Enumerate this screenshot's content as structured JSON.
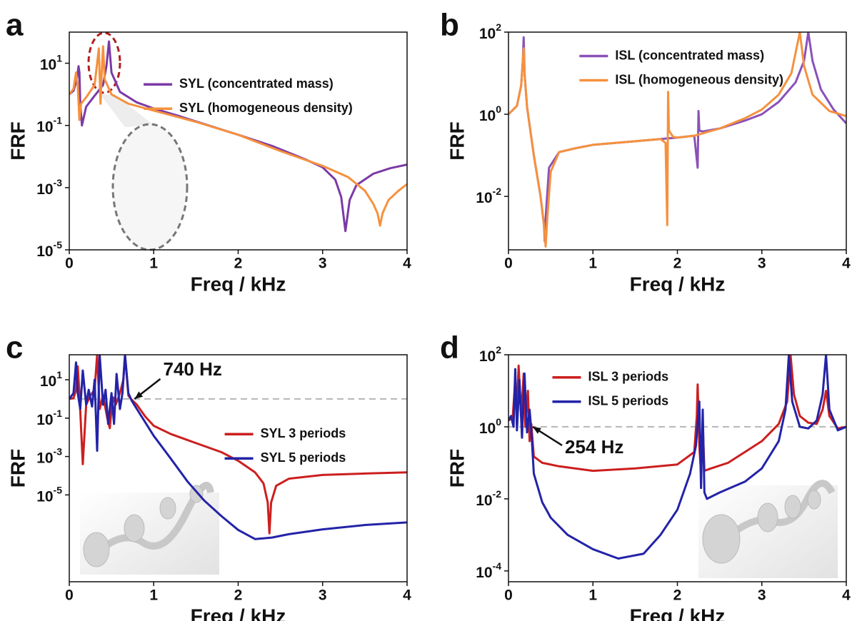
{
  "chart_data": [
    {
      "type": "line",
      "panel_label": "a",
      "xlabel": "Freq / kHz",
      "ylabel": "FRF",
      "yscale": "log",
      "legend": "upper right",
      "xlim": [
        0,
        4
      ],
      "xticks": [
        0,
        1,
        2,
        3,
        4
      ],
      "ylim": [
        1e-05,
        100
      ],
      "yticks": [
        {
          "value": 1e-05,
          "label": "10^-5"
        },
        {
          "value": 0.001,
          "label": "10^-3"
        },
        {
          "value": 0.1,
          "label": "10^-1"
        },
        {
          "value": 10,
          "label": "10^1"
        }
      ],
      "series": [
        {
          "name": "SYL (concentrated mass)",
          "color": "#7b3aa6",
          "x": [
            0,
            0.05,
            0.09,
            0.11,
            0.12,
            0.13,
            0.15,
            0.2,
            0.3,
            0.4,
            0.44,
            0.47,
            0.5,
            0.6,
            0.8,
            1.0,
            1.3,
            1.6,
            2.0,
            2.4,
            2.8,
            3.0,
            3.15,
            3.22,
            3.27,
            3.32,
            3.4,
            3.6,
            3.8,
            4.0
          ],
          "values": [
            1,
            1.3,
            3,
            8,
            5,
            0.5,
            0.1,
            0.4,
            0.9,
            2,
            8,
            50,
            5,
            1.2,
            0.55,
            0.35,
            0.2,
            0.11,
            0.05,
            0.022,
            0.008,
            0.0045,
            0.0018,
            0.0005,
            4e-05,
            0.0004,
            0.0012,
            0.0028,
            0.0042,
            0.0055
          ]
        },
        {
          "name": "SYL (homogeneous density)",
          "color": "#f5913e",
          "x": [
            0,
            0.05,
            0.08,
            0.1,
            0.12,
            0.14,
            0.2,
            0.3,
            0.35,
            0.37,
            0.38,
            0.4,
            0.42,
            0.5,
            0.7,
            1.0,
            1.5,
            2.0,
            2.5,
            3.0,
            3.3,
            3.5,
            3.6,
            3.65,
            3.68,
            3.71,
            3.78,
            3.9,
            4.0
          ],
          "values": [
            1,
            1.5,
            5,
            2,
            0.15,
            0.5,
            0.8,
            2,
            30,
            0.5,
            3,
            35,
            3,
            1,
            0.5,
            0.3,
            0.13,
            0.05,
            0.015,
            0.005,
            0.0022,
            0.0008,
            0.0003,
            0.00015,
            6e-05,
            0.00015,
            0.0004,
            0.0008,
            0.0013
          ]
        }
      ]
    },
    {
      "type": "line",
      "panel_label": "b",
      "xlabel": "Freq / kHz",
      "ylabel": "FRF",
      "yscale": "log",
      "legend": "upper center",
      "xlim": [
        0,
        4
      ],
      "xticks": [
        0,
        1,
        2,
        3,
        4
      ],
      "ylim": [
        0.0005,
        100
      ],
      "yticks": [
        {
          "value": 0.01,
          "label": "10^-2"
        },
        {
          "value": 1,
          "label": "10^0"
        },
        {
          "value": 100,
          "label": "10^2"
        }
      ],
      "series": [
        {
          "name": "ISL (concentrated mass)",
          "color": "#8a52b8",
          "x": [
            0,
            0.1,
            0.15,
            0.17,
            0.18,
            0.19,
            0.22,
            0.3,
            0.38,
            0.42,
            0.43,
            0.44,
            0.48,
            0.6,
            0.8,
            1.0,
            1.5,
            2.0,
            2.2,
            2.24,
            2.25,
            2.26,
            2.3,
            2.5,
            2.8,
            3.0,
            3.2,
            3.4,
            3.5,
            3.55,
            3.6,
            3.7,
            3.85,
            4.0
          ],
          "values": [
            1,
            1.6,
            5,
            20,
            75,
            10,
            1.5,
            0.1,
            0.01,
            0.002,
            0.0008,
            0.003,
            0.05,
            0.12,
            0.15,
            0.18,
            0.22,
            0.27,
            0.3,
            0.05,
            1.2,
            0.4,
            0.38,
            0.45,
            0.7,
            1.0,
            2,
            6,
            20,
            100,
            20,
            4,
            1.3,
            0.6
          ]
        },
        {
          "name": "ISL (homogeneous density)",
          "color": "#f5913e",
          "x": [
            0,
            0.1,
            0.15,
            0.17,
            0.18,
            0.19,
            0.22,
            0.3,
            0.38,
            0.42,
            0.44,
            0.46,
            0.5,
            0.6,
            0.8,
            1.0,
            1.5,
            1.8,
            1.86,
            1.88,
            1.89,
            1.9,
            1.95,
            2.0,
            2.2,
            2.5,
            2.8,
            3.0,
            3.2,
            3.35,
            3.45,
            3.5,
            3.6,
            3.8,
            4.0
          ],
          "values": [
            1,
            1.6,
            5,
            20,
            40,
            10,
            1.5,
            0.1,
            0.01,
            0.002,
            0.0006,
            0.003,
            0.04,
            0.12,
            0.15,
            0.18,
            0.22,
            0.25,
            0.2,
            0.002,
            3.5,
            0.4,
            0.28,
            0.27,
            0.3,
            0.45,
            0.8,
            1.3,
            3,
            10,
            100,
            15,
            3,
            1.2,
            0.9
          ]
        }
      ]
    },
    {
      "type": "line",
      "panel_label": "c",
      "xlabel": "Freq / kHz",
      "ylabel": "FRF",
      "yscale": "log",
      "legend": "center right",
      "xlim": [
        0,
        4
      ],
      "xticks": [
        0,
        1,
        2,
        3,
        4
      ],
      "ylim": [
        3e-10,
        200
      ],
      "yticks": [
        {
          "value": 1e-05,
          "label": "10^-5"
        },
        {
          "value": 0.001,
          "label": "10^-3"
        },
        {
          "value": 0.1,
          "label": "10^-1"
        },
        {
          "value": 10,
          "label": "10^1"
        }
      ],
      "hline": 1,
      "annotation": {
        "text": "740 Hz",
        "x": 0.74,
        "y": 1
      },
      "series": [
        {
          "name": "SYL 3 periods",
          "color": "#cc1f1f",
          "x": [
            0,
            0.05,
            0.08,
            0.1,
            0.12,
            0.16,
            0.2,
            0.25,
            0.3,
            0.33,
            0.36,
            0.4,
            0.45,
            0.48,
            0.5,
            0.52,
            0.55,
            0.6,
            0.64,
            0.66,
            0.7,
            0.74,
            0.8,
            0.9,
            1.0,
            1.2,
            1.5,
            1.8,
            2.0,
            2.2,
            2.3,
            2.35,
            2.37,
            2.39,
            2.45,
            2.6,
            3.0,
            3.5,
            4.0
          ],
          "values": [
            1,
            1.1,
            3,
            50,
            2,
            0.0004,
            0.5,
            1.5,
            3,
            200,
            0.3,
            1.5,
            0.1,
            0.03,
            0.3,
            1.2,
            0.5,
            2,
            10,
            200,
            1.5,
            0.9,
            0.5,
            0.12,
            0.04,
            0.015,
            0.005,
            0.0017,
            0.0006,
            0.00015,
            4e-05,
            4e-06,
            1e-07,
            4e-06,
            3e-05,
            7e-05,
            0.00011,
            0.00013,
            0.00015
          ]
        },
        {
          "name": "SYL 5 periods",
          "color": "#2323a8",
          "x": [
            0,
            0.05,
            0.08,
            0.1,
            0.13,
            0.16,
            0.2,
            0.23,
            0.27,
            0.3,
            0.33,
            0.36,
            0.4,
            0.43,
            0.46,
            0.5,
            0.53,
            0.56,
            0.6,
            0.63,
            0.66,
            0.7,
            0.74,
            0.8,
            0.9,
            1.0,
            1.2,
            1.4,
            1.6,
            1.8,
            2.0,
            2.2,
            2.4,
            2.6,
            3.0,
            3.5,
            4.0
          ],
          "values": [
            1,
            2,
            80,
            2,
            0.3,
            30,
            0.5,
            3,
            0.4,
            10,
            0.002,
            200,
            0.5,
            3,
            0.05,
            2,
            0.05,
            20,
            0.3,
            2,
            200,
            2,
            0.8,
            0.3,
            0.06,
            0.012,
            0.0008,
            5e-05,
            5e-06,
            8e-07,
            1.5e-07,
            5e-08,
            6e-08,
            9e-08,
            1.6e-07,
            2.7e-07,
            3.7e-07
          ]
        }
      ]
    },
    {
      "type": "line",
      "panel_label": "d",
      "xlabel": "Freq / kHz",
      "ylabel": "FRF",
      "yscale": "log",
      "legend": "upper left",
      "xlim": [
        0,
        4
      ],
      "xticks": [
        0,
        1,
        2,
        3,
        4
      ],
      "ylim": [
        5e-05,
        100
      ],
      "yticks": [
        {
          "value": 0.0001,
          "label": "10^-4"
        },
        {
          "value": 0.01,
          "label": "10^-2"
        },
        {
          "value": 1,
          "label": "10^0"
        },
        {
          "value": 100,
          "label": "10^2"
        }
      ],
      "hline": 1,
      "annotation": {
        "text": "254 Hz",
        "x": 0.254,
        "y": 1
      },
      "series": [
        {
          "name": "ISL 3 periods",
          "color": "#cc1f1f",
          "x": [
            0,
            0.05,
            0.08,
            0.1,
            0.12,
            0.15,
            0.18,
            0.2,
            0.23,
            0.25,
            0.27,
            0.3,
            0.4,
            0.6,
            1.0,
            1.5,
            2.0,
            2.2,
            2.23,
            2.24,
            2.26,
            2.28,
            2.3,
            2.32,
            2.4,
            2.6,
            2.8,
            3.0,
            3.2,
            3.3,
            3.34,
            3.38,
            3.45,
            3.55,
            3.65,
            3.72,
            3.76,
            3.8,
            3.9,
            4.0
          ],
          "values": [
            1.5,
            1.8,
            20,
            3,
            50,
            2,
            30,
            1,
            10,
            0.4,
            1.2,
            0.15,
            0.1,
            0.08,
            0.06,
            0.07,
            0.09,
            0.2,
            2,
            15,
            0.3,
            0.05,
            1.3,
            0.06,
            0.07,
            0.1,
            0.2,
            0.4,
            1.2,
            5,
            100,
            8,
            2,
            1.3,
            1.2,
            3,
            10,
            2,
            0.9,
            1
          ]
        },
        {
          "name": "ISL 5 periods",
          "color": "#2323a8",
          "x": [
            0,
            0.03,
            0.06,
            0.08,
            0.1,
            0.13,
            0.16,
            0.19,
            0.22,
            0.25,
            0.27,
            0.3,
            0.4,
            0.5,
            0.7,
            1.0,
            1.3,
            1.6,
            1.8,
            2.0,
            2.15,
            2.22,
            2.26,
            2.28,
            2.3,
            2.32,
            2.35,
            2.5,
            2.8,
            3.0,
            3.2,
            3.28,
            3.32,
            3.36,
            3.45,
            3.55,
            3.65,
            3.72,
            3.76,
            3.8,
            3.9,
            4.0
          ],
          "values": [
            1.5,
            2,
            1,
            40,
            0.8,
            20,
            0.5,
            30,
            0.7,
            3,
            0.8,
            0.05,
            0.008,
            0.003,
            0.001,
            0.0004,
            0.00022,
            0.0003,
            0.001,
            0.005,
            0.05,
            0.3,
            5,
            0.02,
            3,
            0.015,
            0.01,
            0.015,
            0.03,
            0.07,
            0.4,
            3,
            100,
            5,
            1,
            0.9,
            1.5,
            8,
            100,
            3,
            0.8,
            1
          ]
        }
      ]
    }
  ]
}
